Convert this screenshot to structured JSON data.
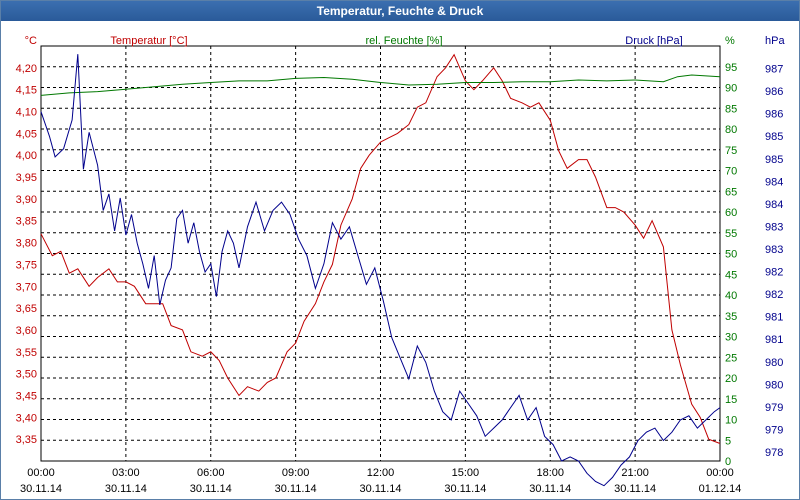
{
  "window": {
    "title": "Temperatur, Feuchte & Druck"
  },
  "colors": {
    "temperature": "#c00000",
    "humidity": "#007800",
    "pressure": "#00008c",
    "grid": "#000000",
    "title_bar": "#2f63a6"
  },
  "chart_data": {
    "type": "line",
    "title": "Temperatur, Feuchte & Druck",
    "grid": true,
    "x_ticks": [
      {
        "time": "00:00",
        "date": "30.11.14"
      },
      {
        "time": "03:00",
        "date": "30.11.14"
      },
      {
        "time": "06:00",
        "date": "30.11.14"
      },
      {
        "time": "09:00",
        "date": "30.11.14"
      },
      {
        "time": "12:00",
        "date": "30.11.14"
      },
      {
        "time": "15:00",
        "date": "30.11.14"
      },
      {
        "time": "18:00",
        "date": "30.11.14"
      },
      {
        "time": "21:00",
        "date": "30.11.14"
      },
      {
        "time": "00:00",
        "date": "01.12.14"
      }
    ],
    "x_range_hours": [
      0,
      24
    ],
    "axes": {
      "temperature": {
        "label": "Temperatur [°C]",
        "unit": "°C",
        "range": [
          3.3,
          4.25
        ],
        "ticks": [
          "4,20",
          "4,15",
          "4,10",
          "4,05",
          "4,00",
          "3,95",
          "3,90",
          "3,85",
          "3,80",
          "3,75",
          "3,70",
          "3,65",
          "3,60",
          "3,55",
          "3,50",
          "3,45",
          "3,40",
          "3,35"
        ]
      },
      "humidity": {
        "label": "rel. Feuchte [%]",
        "unit": "%",
        "range": [
          0,
          100
        ],
        "ticks": [
          "95",
          "90",
          "85",
          "80",
          "75",
          "70",
          "65",
          "60",
          "55",
          "50",
          "45",
          "40",
          "35",
          "30",
          "25",
          "20",
          "15",
          "10",
          "5",
          "0"
        ]
      },
      "pressure": {
        "label": "Druck [hPa]",
        "unit": "hPa",
        "range": [
          977.6,
          987.7
        ],
        "ticks": [
          "987",
          "986",
          "986",
          "985",
          "985",
          "984",
          "984",
          "983",
          "983",
          "982",
          "982",
          "981",
          "981",
          "980",
          "980",
          "979",
          "979",
          "978"
        ]
      }
    },
    "series": [
      {
        "name": "Temperatur [°C]",
        "axis": "temperature",
        "points": [
          [
            0,
            3.82
          ],
          [
            0.4,
            3.77
          ],
          [
            0.7,
            3.78
          ],
          [
            1,
            3.73
          ],
          [
            1.3,
            3.74
          ],
          [
            1.7,
            3.7
          ],
          [
            2,
            3.72
          ],
          [
            2.4,
            3.74
          ],
          [
            2.7,
            3.71
          ],
          [
            3,
            3.71
          ],
          [
            3.3,
            3.7
          ],
          [
            3.7,
            3.66
          ],
          [
            4,
            3.66
          ],
          [
            4.3,
            3.66
          ],
          [
            4.6,
            3.61
          ],
          [
            5,
            3.6
          ],
          [
            5.3,
            3.55
          ],
          [
            5.7,
            3.54
          ],
          [
            6,
            3.55
          ],
          [
            6.3,
            3.53
          ],
          [
            6.6,
            3.49
          ],
          [
            7,
            3.45
          ],
          [
            7.3,
            3.47
          ],
          [
            7.7,
            3.46
          ],
          [
            8,
            3.48
          ],
          [
            8.3,
            3.49
          ],
          [
            8.7,
            3.55
          ],
          [
            9,
            3.57
          ],
          [
            9.3,
            3.62
          ],
          [
            9.7,
            3.66
          ],
          [
            10,
            3.71
          ],
          [
            10.3,
            3.75
          ],
          [
            10.6,
            3.84
          ],
          [
            11,
            3.9
          ],
          [
            11.3,
            3.97
          ],
          [
            11.6,
            4.0
          ],
          [
            12,
            4.03
          ],
          [
            12.3,
            4.04
          ],
          [
            12.6,
            4.05
          ],
          [
            13,
            4.07
          ],
          [
            13.3,
            4.11
          ],
          [
            13.6,
            4.12
          ],
          [
            14,
            4.18
          ],
          [
            14.3,
            4.2
          ],
          [
            14.6,
            4.23
          ],
          [
            15,
            4.17
          ],
          [
            15.3,
            4.15
          ],
          [
            15.6,
            4.17
          ],
          [
            16,
            4.2
          ],
          [
            16.3,
            4.17
          ],
          [
            16.6,
            4.13
          ],
          [
            17,
            4.12
          ],
          [
            17.3,
            4.11
          ],
          [
            17.6,
            4.12
          ],
          [
            18,
            4.08
          ],
          [
            18.3,
            4.01
          ],
          [
            18.6,
            3.97
          ],
          [
            19,
            3.99
          ],
          [
            19.3,
            3.99
          ],
          [
            19.6,
            3.95
          ],
          [
            20,
            3.88
          ],
          [
            20.3,
            3.88
          ],
          [
            20.6,
            3.87
          ],
          [
            21,
            3.84
          ],
          [
            21.3,
            3.81
          ],
          [
            21.6,
            3.85
          ],
          [
            22,
            3.79
          ],
          [
            22.3,
            3.6
          ],
          [
            22.6,
            3.52
          ],
          [
            23,
            3.43
          ],
          [
            23.3,
            3.4
          ],
          [
            23.6,
            3.35
          ],
          [
            24,
            3.34
          ]
        ]
      },
      {
        "name": "rel. Feuchte [%]",
        "axis": "humidity",
        "points": [
          [
            0,
            88.1
          ],
          [
            1,
            88.7
          ],
          [
            2,
            89.0
          ],
          [
            3,
            89.6
          ],
          [
            4,
            90.2
          ],
          [
            5,
            90.8
          ],
          [
            6,
            91.2
          ],
          [
            7,
            91.6
          ],
          [
            8,
            91.6
          ],
          [
            9,
            92.2
          ],
          [
            10,
            92.4
          ],
          [
            11,
            92.0
          ],
          [
            12,
            91.2
          ],
          [
            13,
            90.6
          ],
          [
            14,
            90.8
          ],
          [
            15,
            91.2
          ],
          [
            16,
            91.2
          ],
          [
            17,
            91.4
          ],
          [
            18,
            91.4
          ],
          [
            19,
            91.8
          ],
          [
            20,
            91.6
          ],
          [
            21,
            91.8
          ],
          [
            22,
            91.4
          ],
          [
            22.5,
            92.6
          ],
          [
            23,
            93.0
          ],
          [
            23.5,
            92.8
          ],
          [
            24,
            92.6
          ]
        ]
      },
      {
        "name": "Druck [hPa]",
        "axis": "pressure",
        "points": [
          [
            0,
            986.1
          ],
          [
            0.3,
            985.5
          ],
          [
            0.5,
            985.0
          ],
          [
            0.8,
            985.2
          ],
          [
            1.1,
            985.9
          ],
          [
            1.3,
            987.5
          ],
          [
            1.5,
            984.7
          ],
          [
            1.7,
            985.6
          ],
          [
            2,
            984.8
          ],
          [
            2.2,
            983.7
          ],
          [
            2.4,
            984.1
          ],
          [
            2.6,
            983.2
          ],
          [
            2.8,
            984.0
          ],
          [
            3,
            983.1
          ],
          [
            3.2,
            983.6
          ],
          [
            3.4,
            982.9
          ],
          [
            3.6,
            982.4
          ],
          [
            3.8,
            981.8
          ],
          [
            4,
            982.6
          ],
          [
            4.2,
            981.4
          ],
          [
            4.4,
            982.0
          ],
          [
            4.6,
            982.3
          ],
          [
            4.8,
            983.5
          ],
          [
            5,
            983.7
          ],
          [
            5.2,
            982.9
          ],
          [
            5.4,
            983.4
          ],
          [
            5.6,
            982.7
          ],
          [
            5.8,
            982.2
          ],
          [
            6,
            982.4
          ],
          [
            6.2,
            981.6
          ],
          [
            6.4,
            982.7
          ],
          [
            6.6,
            983.2
          ],
          [
            6.8,
            982.9
          ],
          [
            7,
            982.3
          ],
          [
            7.3,
            983.3
          ],
          [
            7.6,
            983.9
          ],
          [
            7.9,
            983.2
          ],
          [
            8.2,
            983.7
          ],
          [
            8.5,
            983.9
          ],
          [
            8.8,
            983.6
          ],
          [
            9.1,
            983.0
          ],
          [
            9.4,
            982.6
          ],
          [
            9.7,
            981.8
          ],
          [
            10,
            982.4
          ],
          [
            10.3,
            983.4
          ],
          [
            10.6,
            983.0
          ],
          [
            10.9,
            983.3
          ],
          [
            11.2,
            982.6
          ],
          [
            11.5,
            981.9
          ],
          [
            11.8,
            982.3
          ],
          [
            12.1,
            981.5
          ],
          [
            12.4,
            980.6
          ],
          [
            12.7,
            980.1
          ],
          [
            13,
            979.6
          ],
          [
            13.3,
            980.4
          ],
          [
            13.6,
            980.0
          ],
          [
            13.9,
            979.3
          ],
          [
            14.2,
            978.8
          ],
          [
            14.5,
            978.6
          ],
          [
            14.8,
            979.3
          ],
          [
            15.1,
            979.0
          ],
          [
            15.4,
            978.7
          ],
          [
            15.7,
            978.2
          ],
          [
            16,
            978.4
          ],
          [
            16.3,
            978.6
          ],
          [
            16.6,
            978.9
          ],
          [
            16.9,
            979.2
          ],
          [
            17.2,
            978.6
          ],
          [
            17.5,
            978.9
          ],
          [
            17.8,
            978.2
          ],
          [
            18.1,
            978.0
          ],
          [
            18.4,
            977.6
          ],
          [
            18.7,
            977.7
          ],
          [
            19,
            977.6
          ],
          [
            19.3,
            977.3
          ],
          [
            19.6,
            977.1
          ],
          [
            19.9,
            977.0
          ],
          [
            20.2,
            977.2
          ],
          [
            20.5,
            977.5
          ],
          [
            20.8,
            977.7
          ],
          [
            21.1,
            978.1
          ],
          [
            21.4,
            978.3
          ],
          [
            21.7,
            978.4
          ],
          [
            22,
            978.1
          ],
          [
            22.3,
            978.3
          ],
          [
            22.6,
            978.6
          ],
          [
            22.9,
            978.7
          ],
          [
            23.2,
            978.4
          ],
          [
            23.5,
            978.6
          ],
          [
            23.8,
            978.8
          ],
          [
            24,
            978.9
          ]
        ]
      }
    ]
  }
}
